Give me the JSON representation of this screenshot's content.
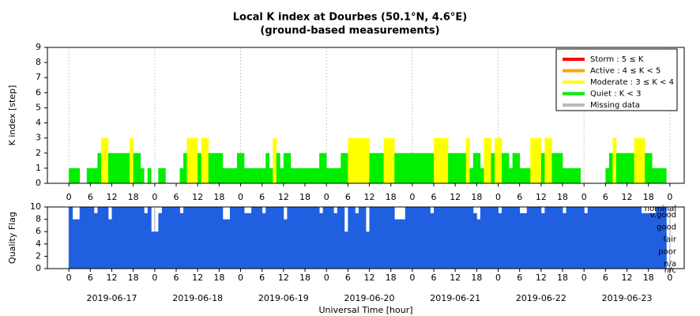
{
  "chart_data": [
    {
      "type": "bar",
      "title": "Local K index at Dourbes (50.1°N, 4.6°E)",
      "subtitle": "(ground-based measurements)",
      "ylabel": "K index [step]",
      "x": [
        0,
        1,
        2,
        3,
        4,
        5,
        6,
        7,
        8,
        9,
        10,
        11,
        12,
        13,
        14,
        15,
        16,
        17,
        18,
        19,
        20,
        21,
        22,
        23,
        24,
        25,
        26,
        27,
        28,
        29,
        30,
        31,
        32,
        33,
        34,
        35,
        36,
        37,
        38,
        39,
        40,
        41,
        42,
        43,
        44,
        45,
        46,
        47,
        48,
        49,
        50,
        51,
        52,
        53,
        54,
        55,
        56,
        57,
        58,
        59,
        60,
        61,
        62,
        63,
        64,
        65,
        66,
        67,
        68,
        69,
        70,
        71,
        72,
        73,
        74,
        75,
        76,
        77,
        78,
        79,
        80,
        81,
        82,
        83,
        84,
        85,
        86,
        87,
        88,
        89,
        90,
        91,
        92,
        93,
        94,
        95,
        96,
        97,
        98,
        99,
        100,
        101,
        102,
        103,
        104,
        105,
        106,
        107,
        108,
        109,
        110,
        111,
        112,
        113,
        114,
        115,
        116,
        117,
        118,
        119,
        120,
        121,
        122,
        123,
        124,
        125,
        126,
        127,
        128,
        129,
        130,
        131,
        132,
        133,
        134,
        135,
        136,
        137,
        138,
        139,
        140,
        141,
        142,
        143,
        144,
        145,
        146,
        147,
        148,
        149,
        150,
        151,
        152,
        153,
        154,
        155,
        156,
        157,
        158,
        159,
        160,
        161,
        162,
        163,
        164,
        165,
        166,
        167
      ],
      "values": [
        1,
        1,
        1,
        0,
        0,
        1,
        1,
        1,
        2,
        3,
        3,
        2,
        2,
        2,
        2,
        2,
        2,
        3,
        2,
        2,
        1,
        0,
        1,
        0,
        0,
        1,
        1,
        0,
        0,
        0,
        0,
        1,
        2,
        3,
        3,
        3,
        2,
        3,
        3,
        2,
        2,
        2,
        2,
        1,
        1,
        1,
        1,
        2,
        2,
        1,
        1,
        1,
        1,
        1,
        1,
        2,
        1,
        3,
        2,
        1,
        2,
        2,
        1,
        1,
        1,
        1,
        1,
        1,
        1,
        1,
        2,
        2,
        1,
        1,
        1,
        1,
        2,
        2,
        3,
        3,
        3,
        3,
        3,
        3,
        2,
        2,
        2,
        2,
        3,
        3,
        3,
        2,
        2,
        2,
        2,
        2,
        2,
        2,
        2,
        2,
        2,
        2,
        3,
        3,
        3,
        3,
        2,
        2,
        2,
        2,
        2,
        3,
        1,
        2,
        2,
        1,
        3,
        3,
        2,
        3,
        3,
        2,
        2,
        1,
        2,
        2,
        1,
        1,
        1,
        3,
        3,
        3,
        2,
        3,
        3,
        2,
        2,
        2,
        1,
        1,
        1,
        1,
        1,
        0,
        0,
        0,
        0,
        0,
        0,
        0,
        1,
        2,
        3,
        2,
        2,
        2,
        2,
        2,
        3,
        3,
        3,
        2,
        2,
        1,
        1,
        1,
        1,
        0
      ],
      "legend": [
        {
          "name": "Storm : 5 ≤ K",
          "color": "#ff0000",
          "min": 5
        },
        {
          "name": "Active : 4 ≤ K < 5",
          "color": "#ffa500",
          "min": 4
        },
        {
          "name": "Moderate : 3 ≤ K < 4",
          "color": "#ffff00",
          "min": 3
        },
        {
          "name": "Quiet : K < 3",
          "color": "#00ee00"
        },
        {
          "name": "Missing data",
          "color": "#bbbbbb"
        }
      ],
      "legend_position": "upper right",
      "xlim": [
        -6,
        172
      ],
      "ylim": [
        0,
        9
      ],
      "yticks": [
        0,
        1,
        2,
        3,
        4,
        5,
        6,
        7,
        8,
        9
      ],
      "xticks": [
        0,
        6,
        12,
        18,
        {
          "value": 24,
          "label": "0"
        },
        {
          "value": 30,
          "label": "6"
        },
        {
          "value": 36,
          "label": "12"
        },
        {
          "value": 42,
          "label": "18"
        },
        {
          "value": 48,
          "label": "0"
        },
        {
          "value": 54,
          "label": "6"
        },
        {
          "value": 60,
          "label": "12"
        },
        {
          "value": 66,
          "label": "18"
        },
        {
          "value": 72,
          "label": "0"
        },
        {
          "value": 78,
          "label": "6"
        },
        {
          "value": 84,
          "label": "12"
        },
        {
          "value": 90,
          "label": "18"
        },
        {
          "value": 96,
          "label": "0"
        },
        {
          "value": 102,
          "label": "6"
        },
        {
          "value": 108,
          "label": "12"
        },
        {
          "value": 114,
          "label": "18"
        },
        {
          "value": 120,
          "label": "0"
        },
        {
          "value": 126,
          "label": "6"
        },
        {
          "value": 132,
          "label": "12"
        },
        {
          "value": 138,
          "label": "18"
        },
        {
          "value": 144,
          "label": "0"
        },
        {
          "value": 150,
          "label": "6"
        },
        {
          "value": 156,
          "label": "12"
        },
        {
          "value": 162,
          "label": "18"
        },
        {
          "value": 168,
          "label": "0"
        }
      ],
      "xgrid": [
        0,
        24,
        48,
        72,
        96,
        120,
        144,
        168
      ],
      "grid": true
    },
    {
      "type": "quality",
      "ylabel": "Quality Flag",
      "xlabel": "Universal Time [hour]",
      "color": "#2060e0",
      "x": [
        0,
        1,
        2,
        3,
        4,
        5,
        6,
        7,
        8,
        9,
        10,
        11,
        12,
        13,
        14,
        15,
        16,
        17,
        18,
        19,
        20,
        21,
        22,
        23,
        24,
        25,
        26,
        27,
        28,
        29,
        30,
        31,
        32,
        33,
        34,
        35,
        36,
        37,
        38,
        39,
        40,
        41,
        42,
        43,
        44,
        45,
        46,
        47,
        48,
        49,
        50,
        51,
        52,
        53,
        54,
        55,
        56,
        57,
        58,
        59,
        60,
        61,
        62,
        63,
        64,
        65,
        66,
        67,
        68,
        69,
        70,
        71,
        72,
        73,
        74,
        75,
        76,
        77,
        78,
        79,
        80,
        81,
        82,
        83,
        84,
        85,
        86,
        87,
        88,
        89,
        90,
        91,
        92,
        93,
        94,
        95,
        96,
        97,
        98,
        99,
        100,
        101,
        102,
        103,
        104,
        105,
        106,
        107,
        108,
        109,
        110,
        111,
        112,
        113,
        114,
        115,
        116,
        117,
        118,
        119,
        120,
        121,
        122,
        123,
        124,
        125,
        126,
        127,
        128,
        129,
        130,
        131,
        132,
        133,
        134,
        135,
        136,
        137,
        138,
        139,
        140,
        141,
        142,
        143,
        144,
        145,
        146,
        147,
        148,
        149,
        150,
        151,
        152,
        153,
        154,
        155,
        156,
        157,
        158,
        159,
        160,
        161,
        162,
        163,
        164,
        165,
        166,
        167
      ],
      "values": [
        10,
        8,
        8,
        10,
        10,
        10,
        10,
        9,
        10,
        10,
        10,
        8,
        10,
        10,
        10,
        10,
        10,
        10,
        10,
        10,
        10,
        9,
        10,
        6,
        6,
        9,
        10,
        10,
        10,
        10,
        10,
        9,
        10,
        10,
        10,
        10,
        10,
        10,
        10,
        10,
        10,
        10,
        10,
        8,
        8,
        10,
        10,
        10,
        10,
        9,
        9,
        10,
        10,
        10,
        9,
        10,
        10,
        10,
        10,
        10,
        8,
        10,
        10,
        10,
        10,
        10,
        10,
        10,
        10,
        10,
        9,
        10,
        10,
        10,
        9,
        10,
        10,
        6,
        10,
        10,
        9,
        10,
        10,
        6,
        10,
        10,
        10,
        10,
        10,
        10,
        10,
        8,
        8,
        8,
        10,
        10,
        10,
        10,
        10,
        10,
        10,
        9,
        10,
        10,
        10,
        10,
        10,
        10,
        10,
        10,
        10,
        10,
        10,
        9,
        8,
        10,
        10,
        10,
        10,
        10,
        9,
        10,
        10,
        10,
        10,
        10,
        9,
        9,
        10,
        10,
        10,
        10,
        9,
        10,
        10,
        10,
        10,
        10,
        9,
        10,
        10,
        10,
        10,
        10,
        9,
        10,
        10,
        10,
        10,
        10,
        10,
        10,
        10,
        10,
        10,
        10,
        10,
        10,
        10,
        10,
        9,
        9,
        9,
        9,
        10,
        10,
        10,
        null
      ],
      "flag_labels": [
        {
          "value": 10,
          "label": "nominal"
        },
        {
          "value": 9,
          "label": "v.good"
        },
        {
          "value": 7,
          "label": "good"
        },
        {
          "value": 5,
          "label": "fair"
        },
        {
          "value": 3,
          "label": "poor"
        },
        {
          "value": 1,
          "label": "n/a"
        },
        {
          "value": 0,
          "label": "n/c"
        }
      ],
      "day_labels": [
        {
          "value": 12,
          "label": "2019-06-17"
        },
        {
          "value": 36,
          "label": "2019-06-18"
        },
        {
          "value": 60,
          "label": "2019-06-19"
        },
        {
          "value": 84,
          "label": "2019-06-20"
        },
        {
          "value": 108,
          "label": "2019-06-21"
        },
        {
          "value": 132,
          "label": "2019-06-22"
        },
        {
          "value": 156,
          "label": "2019-06-23"
        }
      ],
      "xlim": [
        -6,
        172
      ],
      "ylim": [
        0,
        10
      ],
      "yticks": [
        0,
        2,
        4,
        6,
        8,
        10
      ],
      "xticks": [
        0,
        6,
        12,
        18,
        {
          "value": 24,
          "label": "0"
        },
        {
          "value": 30,
          "label": "6"
        },
        {
          "value": 36,
          "label": "12"
        },
        {
          "value": 42,
          "label": "18"
        },
        {
          "value": 48,
          "label": "0"
        },
        {
          "value": 54,
          "label": "6"
        },
        {
          "value": 60,
          "label": "12"
        },
        {
          "value": 66,
          "label": "18"
        },
        {
          "value": 72,
          "label": "0"
        },
        {
          "value": 78,
          "label": "6"
        },
        {
          "value": 84,
          "label": "12"
        },
        {
          "value": 90,
          "label": "18"
        },
        {
          "value": 96,
          "label": "0"
        },
        {
          "value": 102,
          "label": "6"
        },
        {
          "value": 108,
          "label": "12"
        },
        {
          "value": 114,
          "label": "18"
        },
        {
          "value": 120,
          "label": "0"
        },
        {
          "value": 126,
          "label": "6"
        },
        {
          "value": 132,
          "label": "12"
        },
        {
          "value": 138,
          "label": "18"
        },
        {
          "value": 144,
          "label": "0"
        },
        {
          "value": 150,
          "label": "6"
        },
        {
          "value": 156,
          "label": "12"
        },
        {
          "value": 162,
          "label": "18"
        },
        {
          "value": 168,
          "label": "0"
        }
      ],
      "xgrid": [
        0,
        24,
        48,
        72,
        96,
        120,
        144,
        168
      ],
      "grid": true
    }
  ]
}
